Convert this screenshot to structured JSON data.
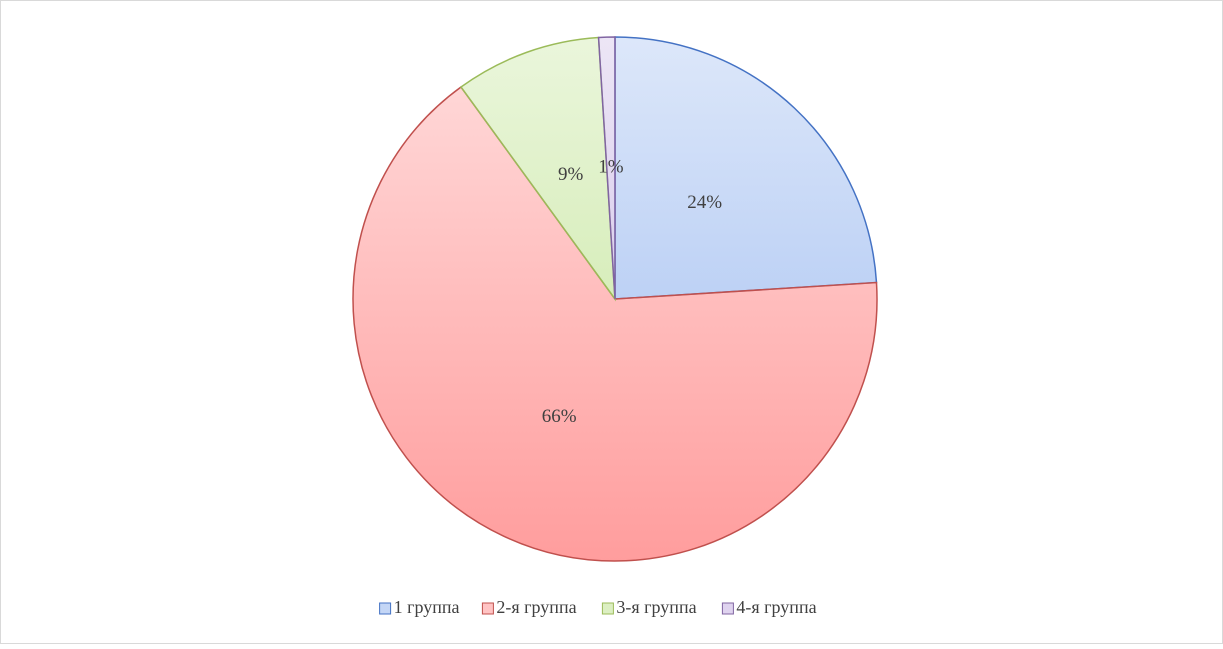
{
  "chart_data": {
    "type": "pie",
    "categories": [
      "1 группа",
      "2-я группа",
      "3-я группа",
      "4-я группа"
    ],
    "values": [
      24,
      66,
      9,
      1
    ],
    "value_labels": [
      "24%",
      "66%",
      "9%",
      "1%"
    ],
    "colors": [
      "#4472c4",
      "#c0504d",
      "#9bbb59",
      "#8064a2"
    ],
    "fills": [
      "#9dbbf0",
      "#ff9d9d",
      "#c4e59a",
      "#c9b6e4"
    ],
    "legend": "bottom"
  }
}
